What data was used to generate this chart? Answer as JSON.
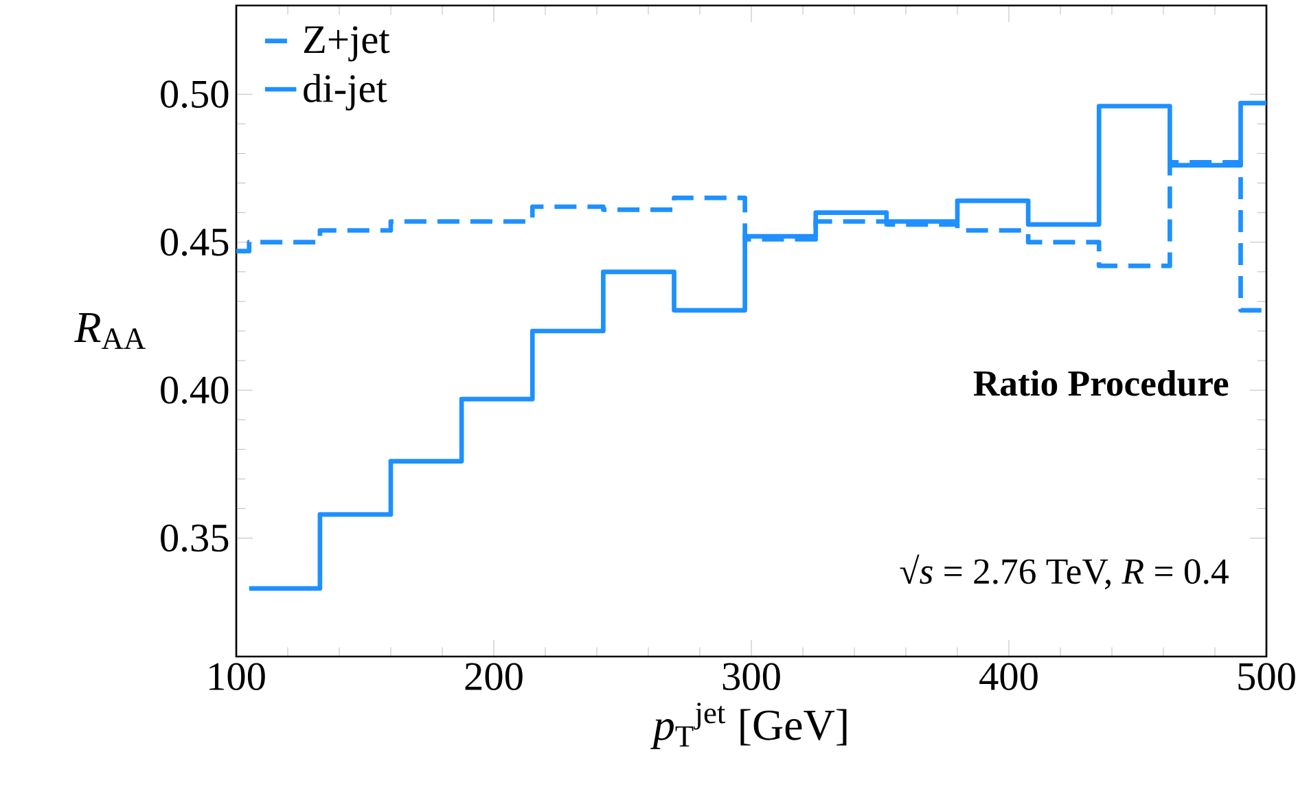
{
  "chart_data": {
    "type": "step",
    "xlabel": "*p*$_{T}$$^{jet}$ [GeV]",
    "ylabel": "*R*$_{AA}$",
    "xlim": [
      100,
      500
    ],
    "ylim": [
      0.31,
      0.53
    ],
    "xticks": [
      100,
      200,
      300,
      400,
      500
    ],
    "yticks": [
      0.35,
      {
        "value": 0.4,
        "label": "0.40"
      },
      0.45,
      {
        "value": 0.5,
        "label": "0.50"
      }
    ],
    "legend": "top left",
    "grid": false,
    "series": [
      {
        "name": "Z+jet",
        "color": "#1e90ff",
        "line_style": "dashed",
        "x": [
          100,
          105,
          132.5,
          160,
          187.5,
          215,
          242.5,
          270,
          297.5,
          325,
          352.5,
          380,
          407.5,
          435,
          462.5,
          490,
          500
        ],
        "values": [
          0.447,
          0.45,
          0.454,
          0.457,
          0.457,
          0.462,
          0.461,
          0.465,
          0.451,
          0.457,
          0.456,
          0.454,
          0.45,
          0.442,
          0.477,
          0.427,
          0.427
        ]
      },
      {
        "name": "di-jet",
        "color": "#1e90ff",
        "line_style": "solid",
        "x": [
          105,
          132.5,
          160,
          187.5,
          215,
          242.5,
          270,
          297.5,
          325,
          352.5,
          380,
          407.5,
          435,
          462.5,
          490,
          500
        ],
        "values": [
          0.333,
          0.358,
          0.376,
          0.397,
          0.42,
          0.44,
          0.427,
          0.452,
          0.46,
          0.457,
          0.464,
          0.456,
          0.496,
          0.476,
          0.497,
          0.497
        ]
      }
    ],
    "annotations": [
      "**Ratio Procedure**",
      "√*s* = 2.76 TeV, *R* = 0.4"
    ]
  }
}
